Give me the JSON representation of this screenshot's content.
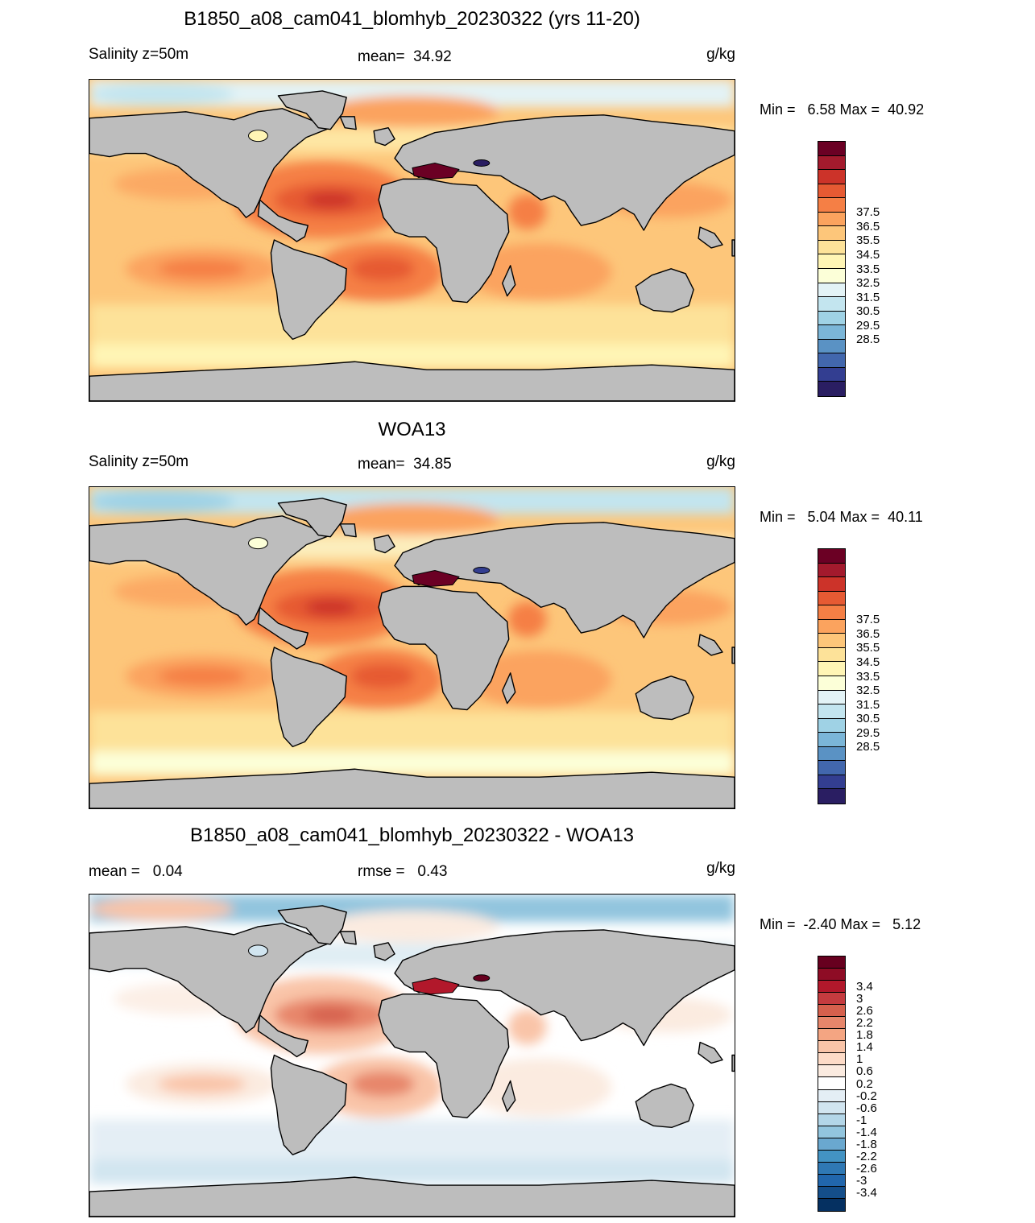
{
  "panels": [
    {
      "title": "B1850_a08_cam041_blomhyb_20230322 (yrs 11-20)",
      "variable_label": "Salinity z=50m",
      "stat_label": "mean=  34.92",
      "units": "g/kg",
      "minmax": "Min =   6.58 Max =  40.92",
      "colorbar": {
        "colors": [
          "#6b0024",
          "#a31a2d",
          "#cc3329",
          "#e65a33",
          "#f57f45",
          "#fba35e",
          "#fdc67a",
          "#fde299",
          "#fff5b5",
          "#fcffd8",
          "#e3f3f6",
          "#c3e5ef",
          "#9fd2e5",
          "#7bb6d8",
          "#5a92c4",
          "#4267ad",
          "#333e91",
          "#2a1e62"
        ],
        "labels": [
          "37.5",
          "36.5",
          "35.5",
          "34.5",
          "33.5",
          "32.5",
          "31.5",
          "30.5",
          "29.5",
          "28.5"
        ]
      },
      "ocean": {
        "base": "#fdc67a",
        "mid": "#fba35e",
        "high": "#f57f45",
        "vhigh": "#e65a33",
        "peak": "#cc3329",
        "sea": "#6b0024",
        "low": "#fde299",
        "fresh": "#fff5b5",
        "cold": "#e3f3f6",
        "arctic": "#c3e5ef",
        "black": "#2a1e62"
      }
    },
    {
      "title": "WOA13",
      "variable_label": "Salinity z=50m",
      "stat_label": "mean=  34.85",
      "units": "g/kg",
      "minmax": "Min =   5.04 Max =  40.11",
      "colorbar": {
        "colors": [
          "#6b0024",
          "#a31a2d",
          "#cc3329",
          "#e65a33",
          "#f57f45",
          "#fba35e",
          "#fdc67a",
          "#fde299",
          "#fff5b5",
          "#fcffd8",
          "#e3f3f6",
          "#c3e5ef",
          "#9fd2e5",
          "#7bb6d8",
          "#5a92c4",
          "#4267ad",
          "#333e91",
          "#2a1e62"
        ],
        "labels": [
          "37.5",
          "36.5",
          "35.5",
          "34.5",
          "33.5",
          "32.5",
          "31.5",
          "30.5",
          "29.5",
          "28.5"
        ]
      },
      "ocean": {
        "base": "#fdc67a",
        "mid": "#fba35e",
        "high": "#f57f45",
        "vhigh": "#e65a33",
        "peak": "#cc3329",
        "sea": "#6b0024",
        "low": "#fde299",
        "fresh": "#fcffd8",
        "cold": "#c3e5ef",
        "arctic": "#9fd2e5",
        "black": "#333e91"
      }
    },
    {
      "title": "B1850_a08_cam041_blomhyb_20230322 - WOA13",
      "variable_label": "mean =   0.04",
      "stat_label": "rmse =   0.43",
      "units": "g/kg",
      "minmax": "Min =  -2.40 Max =   5.12",
      "colorbar": {
        "colors": [
          "#67001f",
          "#8e0c25",
          "#b2182b",
          "#c53b3f",
          "#d6604d",
          "#e7866b",
          "#f4a582",
          "#f9c4a8",
          "#fddbc7",
          "#fbebe0",
          "#ffffff",
          "#e4eef5",
          "#d1e5f0",
          "#b3d6e8",
          "#92c5de",
          "#6aa8cf",
          "#4393c3",
          "#2f78b4",
          "#2166ac",
          "#144e8a",
          "#053061"
        ],
        "labels": [
          "3.4",
          "3",
          "2.6",
          "2.2",
          "1.8",
          "1.4",
          "1",
          "0.6",
          "0.2",
          "-0.2",
          "-0.6",
          "-1",
          "-1.4",
          "-1.8",
          "-2.2",
          "-2.6",
          "-3",
          "-3.4"
        ]
      },
      "ocean": {
        "base": "#ffffff",
        "mid": "#fbebe0",
        "high": "#f9c4a8",
        "vhigh": "#e7866b",
        "peak": "#d6604d",
        "sea": "#b2182b",
        "low": "#e4eef5",
        "fresh": "#d1e5f0",
        "cold": "#92c5de",
        "arctic": "#f9c4a8",
        "black": "#67001f"
      }
    }
  ]
}
